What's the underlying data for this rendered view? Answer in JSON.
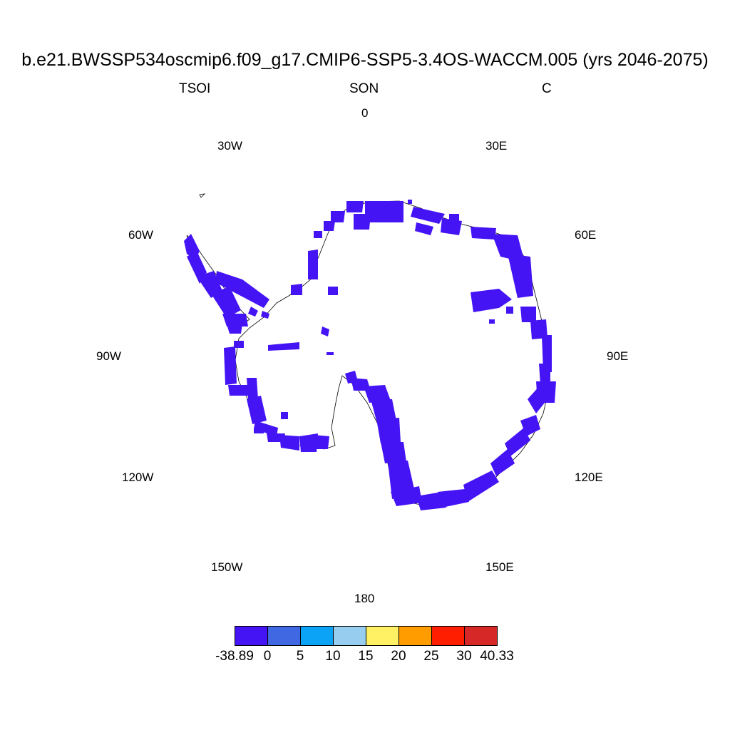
{
  "title": "b.e21.BWSSP534oscmip6.f09_g17.CMIP6-SSP5-3.4OS-WACCM.005 (yrs 2046-2075)",
  "subtitle": {
    "left": "TSOI",
    "center": "SON",
    "right": "C"
  },
  "longitude_labels": [
    "0",
    "30E",
    "60E",
    "90E",
    "120E",
    "150E",
    "180",
    "150W",
    "120W",
    "90W",
    "60W",
    "30W"
  ],
  "colors": {
    "field": "#4514f5",
    "coastline": "#000000",
    "colorbar": [
      "#4514f5",
      "#3f68e2",
      "#0ba3f5",
      "#97cdee",
      "#fff064",
      "#ff9d00",
      "#ff1e00",
      "#d72828"
    ]
  },
  "colorbar": {
    "labels": [
      "-38.89",
      "0",
      "5",
      "10",
      "15",
      "20",
      "25",
      "30",
      "40.33"
    ]
  },
  "map_data": {
    "projection": "south polar stereographic",
    "variable": "TSOI",
    "season": "SON",
    "units": "C",
    "value_range": [
      -38.89,
      40.33
    ],
    "field_bin": "-38.89 to 0"
  }
}
